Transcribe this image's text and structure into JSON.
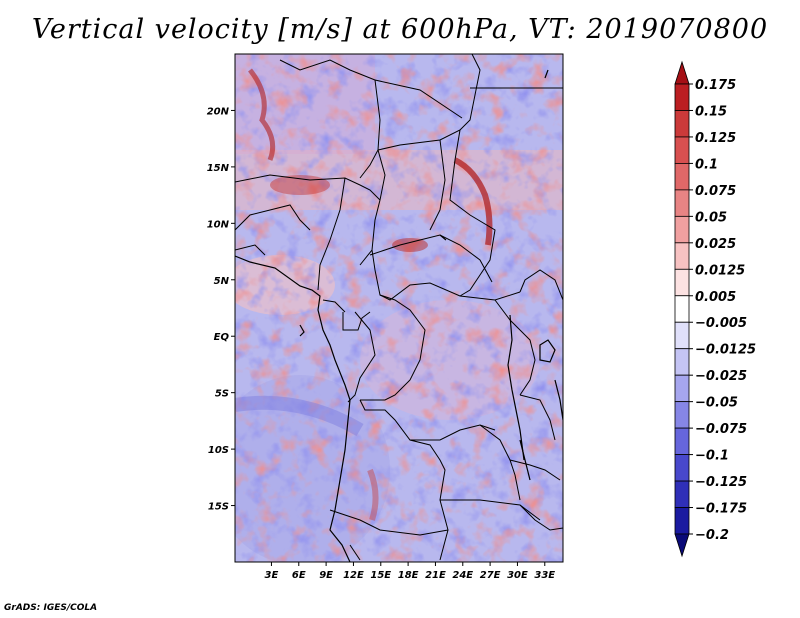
{
  "title": "Vertical velocity [m/s] at 600hPa, VT: 2019070800",
  "footer": "GrADS: IGES/COLA",
  "map": {
    "lon_range": [
      -1,
      35
    ],
    "lat_range": [
      -20,
      25
    ],
    "lat_ticks": [
      {
        "value": 20,
        "label": "20N"
      },
      {
        "value": 15,
        "label": "15N"
      },
      {
        "value": 10,
        "label": "10N"
      },
      {
        "value": 5,
        "label": "5N"
      },
      {
        "value": 0,
        "label": "EQ"
      },
      {
        "value": -5,
        "label": "5S"
      },
      {
        "value": -10,
        "label": "10S"
      },
      {
        "value": -15,
        "label": "15S"
      }
    ],
    "lon_ticks": [
      {
        "value": 3,
        "label": "3E"
      },
      {
        "value": 6,
        "label": "6E"
      },
      {
        "value": 9,
        "label": "9E"
      },
      {
        "value": 12,
        "label": "12E"
      },
      {
        "value": 15,
        "label": "15E"
      },
      {
        "value": 18,
        "label": "18E"
      },
      {
        "value": 21,
        "label": "21E"
      },
      {
        "value": 24,
        "label": "24E"
      },
      {
        "value": 27,
        "label": "27E"
      },
      {
        "value": 30,
        "label": "30E"
      },
      {
        "value": 33,
        "label": "33E"
      }
    ]
  },
  "colorbar": {
    "labels": [
      "0.175",
      "0.15",
      "0.125",
      "0.1",
      "0.075",
      "0.05",
      "0.025",
      "0.0125",
      "0.005",
      "-0.005",
      "-0.0125",
      "-0.025",
      "-0.05",
      "-0.075",
      "-0.1",
      "-0.125",
      "-0.175",
      "-0.2"
    ],
    "colors": [
      "#a50f15",
      "#bb1e22",
      "#cb3a3a",
      "#d85050",
      "#e06868",
      "#e88484",
      "#f0a0a0",
      "#f7c2c2",
      "#fce2e2",
      "#ffffff",
      "#e0e0fa",
      "#c4c4f4",
      "#a6a6ee",
      "#8686e6",
      "#6666dc",
      "#4848cc",
      "#2f2fb8",
      "#1a1aa0",
      "#0a0a78"
    ]
  }
}
